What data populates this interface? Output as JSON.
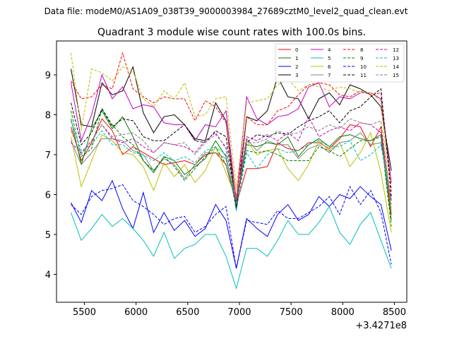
{
  "header": {
    "data_file": "Data file: modeM0/AS1A09_038T39_9000003984_27689cztM0_level2_quad_clean.evt"
  },
  "chart_data": {
    "type": "line",
    "title": "Quadrant 3 module wise count rates with 100.0s bins.",
    "xlabel": "",
    "ylabel": "",
    "x_offset_label": "+3.4271e8",
    "xlim": [
      5230,
      8620
    ],
    "ylim": [
      3.3,
      9.85
    ],
    "xticks": [
      5500,
      6000,
      6500,
      7000,
      7500,
      8000,
      8500
    ],
    "yticks": [
      4,
      5,
      6,
      7,
      8,
      9
    ],
    "grid": false,
    "legend_placement": "top-right",
    "x": [
      5370,
      5470,
      5570,
      5670,
      5770,
      5870,
      5970,
      6070,
      6170,
      6270,
      6370,
      6470,
      6570,
      6670,
      6770,
      6870,
      6970,
      7070,
      7170,
      7270,
      7370,
      7470,
      7570,
      7670,
      7770,
      7870,
      7970,
      8070,
      8170,
      8270,
      8370,
      8470
    ],
    "series": [
      {
        "name": "0",
        "color": "#ff0000",
        "style": "solid",
        "values": [
          7.7,
          6.85,
          7.3,
          7.9,
          7.6,
          7.0,
          7.2,
          7.05,
          6.9,
          6.75,
          6.8,
          6.85,
          6.75,
          7.0,
          7.05,
          6.75,
          5.75,
          6.65,
          6.65,
          6.7,
          7.3,
          7.15,
          7.1,
          7.3,
          7.3,
          7.15,
          7.4,
          7.75,
          7.7,
          7.2,
          7.7,
          5.5
        ]
      },
      {
        "name": "1",
        "color": "#008000",
        "style": "solid",
        "values": [
          7.9,
          6.75,
          7.65,
          8.1,
          7.65,
          7.95,
          7.45,
          6.85,
          6.55,
          6.95,
          6.85,
          6.5,
          6.7,
          6.9,
          7.35,
          6.95,
          5.75,
          7.25,
          7.2,
          7.3,
          7.25,
          7.45,
          6.95,
          7.25,
          7.4,
          7.2,
          7.45,
          7.5,
          7.4,
          7.35,
          7.5,
          5.35
        ]
      },
      {
        "name": "2",
        "color": "#0000ff",
        "style": "solid",
        "values": [
          5.8,
          5.3,
          6.1,
          5.85,
          6.35,
          5.65,
          5.15,
          6.05,
          5.05,
          5.55,
          5.1,
          5.35,
          4.95,
          5.15,
          5.75,
          5.35,
          4.15,
          5.4,
          5.15,
          4.95,
          5.5,
          5.75,
          5.35,
          5.5,
          5.95,
          5.7,
          6.0,
          5.9,
          6.2,
          5.95,
          5.75,
          4.6
        ]
      },
      {
        "name": "3",
        "color": "#000000",
        "style": "solid",
        "values": [
          9.15,
          7.75,
          7.7,
          8.8,
          8.5,
          8.6,
          9.2,
          8.05,
          7.55,
          7.95,
          8.0,
          7.75,
          7.4,
          7.35,
          8.3,
          7.85,
          5.6,
          7.95,
          7.85,
          8.1,
          8.95,
          8.45,
          8.4,
          7.9,
          8.4,
          8.55,
          8.25,
          8.75,
          8.65,
          8.5,
          8.2,
          6.6
        ]
      },
      {
        "name": "4",
        "color": "#bf00bf",
        "style": "solid",
        "values": [
          8.8,
          7.35,
          8.0,
          9.0,
          8.4,
          8.7,
          8.15,
          8.25,
          8.2,
          7.8,
          7.75,
          7.75,
          7.35,
          7.75,
          7.7,
          8.1,
          5.85,
          8.45,
          7.9,
          7.75,
          7.95,
          8.0,
          8.15,
          8.7,
          8.8,
          8.2,
          8.45,
          8.4,
          8.55,
          8.55,
          8.4,
          6.3
        ]
      },
      {
        "name": "5",
        "color": "#00bfbf",
        "style": "solid",
        "values": [
          5.55,
          4.85,
          5.15,
          5.5,
          5.2,
          5.4,
          5.15,
          4.85,
          4.45,
          5.05,
          4.4,
          4.65,
          4.75,
          5.0,
          5.0,
          4.45,
          3.65,
          4.65,
          4.65,
          4.45,
          4.85,
          5.35,
          5.0,
          5.0,
          5.3,
          5.7,
          5.05,
          4.75,
          5.25,
          5.55,
          4.85,
          4.15
        ]
      },
      {
        "name": "6",
        "color": "#bfbf00",
        "style": "solid",
        "values": [
          7.45,
          6.2,
          6.85,
          7.5,
          7.35,
          7.05,
          7.0,
          6.7,
          6.1,
          6.8,
          6.45,
          6.75,
          6.3,
          6.6,
          7.2,
          6.55,
          5.9,
          7.35,
          7.0,
          7.1,
          7.15,
          6.65,
          6.35,
          6.75,
          7.35,
          7.1,
          7.3,
          6.7,
          7.05,
          7.55,
          6.55,
          5.05
        ]
      },
      {
        "name": "7",
        "color": "#808080",
        "style": "solid",
        "values": [
          7.35,
          6.75,
          7.05,
          7.4,
          7.4,
          7.35,
          7.1,
          7.0,
          6.6,
          6.9,
          6.75,
          6.4,
          6.75,
          7.05,
          7.05,
          6.9,
          5.8,
          7.4,
          7.1,
          7.35,
          7.25,
          7.25,
          6.9,
          7.15,
          7.25,
          7.05,
          7.3,
          7.35,
          7.55,
          7.25,
          7.3,
          5.85
        ]
      },
      {
        "name": "8",
        "color": "#ff0000",
        "style": "dashed",
        "values": [
          8.85,
          8.4,
          8.45,
          8.75,
          8.65,
          9.55,
          8.65,
          8.45,
          8.3,
          8.45,
          8.4,
          8.4,
          7.85,
          8.35,
          8.2,
          7.8,
          5.9,
          7.95,
          7.75,
          7.75,
          8.1,
          8.2,
          8.5,
          8.75,
          8.8,
          8.75,
          8.5,
          8.45,
          8.6,
          8.5,
          8.55,
          6.1
        ]
      },
      {
        "name": "9",
        "color": "#008000",
        "style": "dashed",
        "values": [
          8.1,
          6.95,
          7.15,
          8.15,
          7.75,
          7.45,
          7.25,
          6.85,
          6.6,
          6.95,
          6.7,
          6.35,
          6.65,
          6.95,
          7.2,
          6.75,
          5.8,
          7.1,
          7.05,
          7.1,
          7.0,
          6.85,
          6.85,
          6.85,
          7.2,
          7.1,
          6.95,
          7.15,
          7.35,
          7.35,
          7.45,
          5.2
        ]
      },
      {
        "name": "10",
        "color": "#0000ff",
        "style": "dashed",
        "values": [
          5.75,
          5.5,
          5.95,
          6.1,
          6.15,
          6.25,
          5.85,
          5.7,
          5.5,
          5.25,
          5.4,
          5.45,
          5.05,
          5.2,
          5.5,
          5.7,
          4.15,
          5.35,
          5.3,
          5.25,
          5.6,
          5.4,
          5.4,
          5.55,
          5.7,
          5.95,
          5.5,
          6.2,
          5.75,
          6.1,
          5.55,
          4.25
        ]
      },
      {
        "name": "11",
        "color": "#000000",
        "style": "dashed",
        "values": [
          8.3,
          7.25,
          7.55,
          8.15,
          7.7,
          7.9,
          7.85,
          7.45,
          7.35,
          7.35,
          7.55,
          7.75,
          7.35,
          7.3,
          7.6,
          7.45,
          5.7,
          7.3,
          7.5,
          7.45,
          7.55,
          7.5,
          7.7,
          7.85,
          7.95,
          8.1,
          7.8,
          8.1,
          8.2,
          8.45,
          8.65,
          5.95
        ]
      },
      {
        "name": "12",
        "color": "#bf00bf",
        "style": "dashed",
        "values": [
          7.3,
          7.05,
          7.35,
          7.75,
          7.4,
          7.3,
          7.4,
          7.2,
          7.05,
          7.3,
          7.25,
          7.2,
          7.05,
          7.35,
          7.55,
          7.15,
          5.8,
          7.45,
          7.35,
          7.5,
          7.35,
          7.55,
          7.35,
          7.95,
          7.45,
          7.6,
          7.7,
          7.6,
          7.8,
          7.75,
          7.55,
          5.85
        ]
      },
      {
        "name": "13",
        "color": "#00bfbf",
        "style": "dashed",
        "values": [
          7.85,
          7.1,
          7.25,
          7.6,
          7.25,
          7.25,
          7.05,
          7.0,
          6.85,
          7.05,
          6.85,
          6.95,
          6.8,
          7.1,
          7.2,
          7.0,
          5.6,
          7.05,
          6.65,
          7.0,
          7.15,
          7.05,
          7.1,
          7.25,
          7.35,
          7.2,
          7.2,
          7.35,
          6.85,
          7.0,
          7.25,
          5.75
        ]
      },
      {
        "name": "14",
        "color": "#bfbf00",
        "style": "dashed",
        "values": [
          9.55,
          7.6,
          9.15,
          9.05,
          8.85,
          9.2,
          9.1,
          8.4,
          8.2,
          8.6,
          8.4,
          8.8,
          7.95,
          8.0,
          8.4,
          8.45,
          6.15,
          8.3,
          8.35,
          8.4,
          8.75,
          8.9,
          8.6,
          8.75,
          8.7,
          8.6,
          8.7,
          8.65,
          8.55,
          8.55,
          8.35,
          5.55
        ]
      },
      {
        "name": "15",
        "color": "#808080",
        "style": "dashed",
        "values": [
          7.6,
          7.0,
          7.35,
          7.75,
          7.45,
          7.5,
          7.55,
          7.35,
          7.05,
          7.3,
          7.25,
          7.3,
          7.0,
          7.3,
          7.5,
          7.2,
          5.75,
          7.3,
          7.3,
          7.4,
          7.6,
          7.5,
          7.55,
          7.7,
          7.6,
          7.75,
          7.65,
          7.9,
          7.8,
          7.75,
          7.85,
          5.6
        ]
      }
    ]
  }
}
